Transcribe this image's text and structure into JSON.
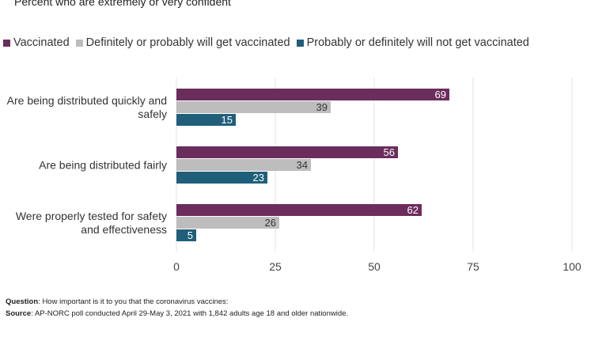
{
  "subtitle": "Percent who are extremely or very confident",
  "chart_data": {
    "type": "bar",
    "orientation": "horizontal",
    "categories": [
      "Are being distributed quickly and safely",
      "Are being distributed fairly",
      "Were properly tested for safety and effectiveness"
    ],
    "category_label_lines": [
      [
        "Are being distributed quickly and",
        "safely"
      ],
      [
        "Are being distributed fairly"
      ],
      [
        "Were properly tested for safety",
        "and effectiveness"
      ]
    ],
    "series": [
      {
        "name": "Vaccinated",
        "values": [
          69,
          56,
          62
        ],
        "color": "#6b2d5c"
      },
      {
        "name": "Definitely or probably will get vaccinated",
        "values": [
          39,
          34,
          26
        ],
        "color": "#bdbdbd"
      },
      {
        "name": "Probably or definitely will not get vaccinated",
        "values": [
          15,
          23,
          5
        ],
        "color": "#1f5f7a"
      }
    ],
    "xlim": [
      0,
      100
    ],
    "xticks": [
      0,
      25,
      50,
      75,
      100
    ],
    "grid": true,
    "legend_position": "top-left",
    "data_labels": true
  },
  "notes": {
    "question_label": "Question",
    "question_text": ": How important is it to you that the coronavirus vaccines:",
    "source_label": "Source",
    "source_text": ": AP-NORC poll conducted April 29-May 3, 2021 with 1,842 adults age 18 and older nationwide."
  }
}
